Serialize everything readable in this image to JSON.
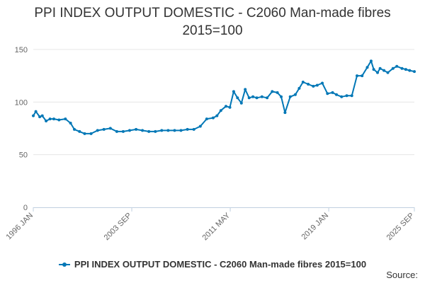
{
  "chart_data": {
    "type": "line",
    "title_lines": [
      "PPI INDEX OUTPUT DOMESTIC - C2060 Man-made fibres",
      "2015=100"
    ],
    "source_label": "Source:",
    "x_tick_labels": [
      "1996 JAN",
      "2003 SEP",
      "2011 MAY",
      "2019 JAN",
      "2025 SEP"
    ],
    "x_tick_years": [
      1996.0,
      2003.667,
      2011.333,
      2019.0,
      2025.667
    ],
    "y_ticks": [
      0,
      50,
      100,
      150
    ],
    "ylim": [
      0,
      160
    ],
    "xlim": [
      1996.0,
      2025.667
    ],
    "grid": "horizontal",
    "legend_position": "bottom",
    "series": [
      {
        "name": "PPI INDEX OUTPUT DOMESTIC - C2060 Man-made fibres 2015=100",
        "color": "#0077b6",
        "x": [
          1996.0,
          1996.2,
          1996.5,
          1996.7,
          1997.0,
          1997.3,
          1997.6,
          1998.0,
          1998.5,
          1998.9,
          1999.2,
          1999.6,
          2000.0,
          2000.5,
          2001.0,
          2001.5,
          2002.0,
          2002.5,
          2003.0,
          2003.5,
          2004.0,
          2004.5,
          2005.0,
          2005.5,
          2006.0,
          2006.5,
          2007.0,
          2007.5,
          2008.0,
          2008.5,
          2009.0,
          2009.5,
          2010.0,
          2010.3,
          2010.6,
          2011.0,
          2011.3,
          2011.6,
          2011.9,
          2012.2,
          2012.5,
          2012.8,
          2013.1,
          2013.4,
          2013.8,
          2014.2,
          2014.6,
          2015.0,
          2015.3,
          2015.6,
          2016.0,
          2016.4,
          2016.7,
          2017.0,
          2017.4,
          2017.8,
          2018.1,
          2018.5,
          2018.9,
          2019.3,
          2019.6,
          2020.0,
          2020.4,
          2020.8,
          2021.2,
          2021.6,
          2022.0,
          2022.3,
          2022.5,
          2022.8,
          2023.0,
          2023.3,
          2023.6,
          2024.0,
          2024.3,
          2024.7,
          2025.0,
          2025.3,
          2025.667
        ],
        "values": [
          87,
          91,
          86,
          87,
          82,
          84,
          84,
          83,
          84,
          80,
          74,
          72,
          70,
          70,
          73,
          74,
          75,
          72,
          72,
          73,
          74,
          73,
          72,
          72,
          73,
          73,
          73,
          73,
          74,
          74,
          77,
          84,
          85,
          87,
          92,
          96,
          95,
          110,
          104,
          99,
          112,
          104,
          105,
          104,
          105,
          104,
          110,
          109,
          105,
          90,
          105,
          107,
          113,
          119,
          117,
          115,
          116,
          118,
          108,
          109,
          107,
          105,
          106,
          106,
          125,
          125,
          133,
          139,
          131,
          128,
          132,
          130,
          128,
          132,
          134,
          132,
          131,
          130,
          129
        ]
      }
    ]
  }
}
